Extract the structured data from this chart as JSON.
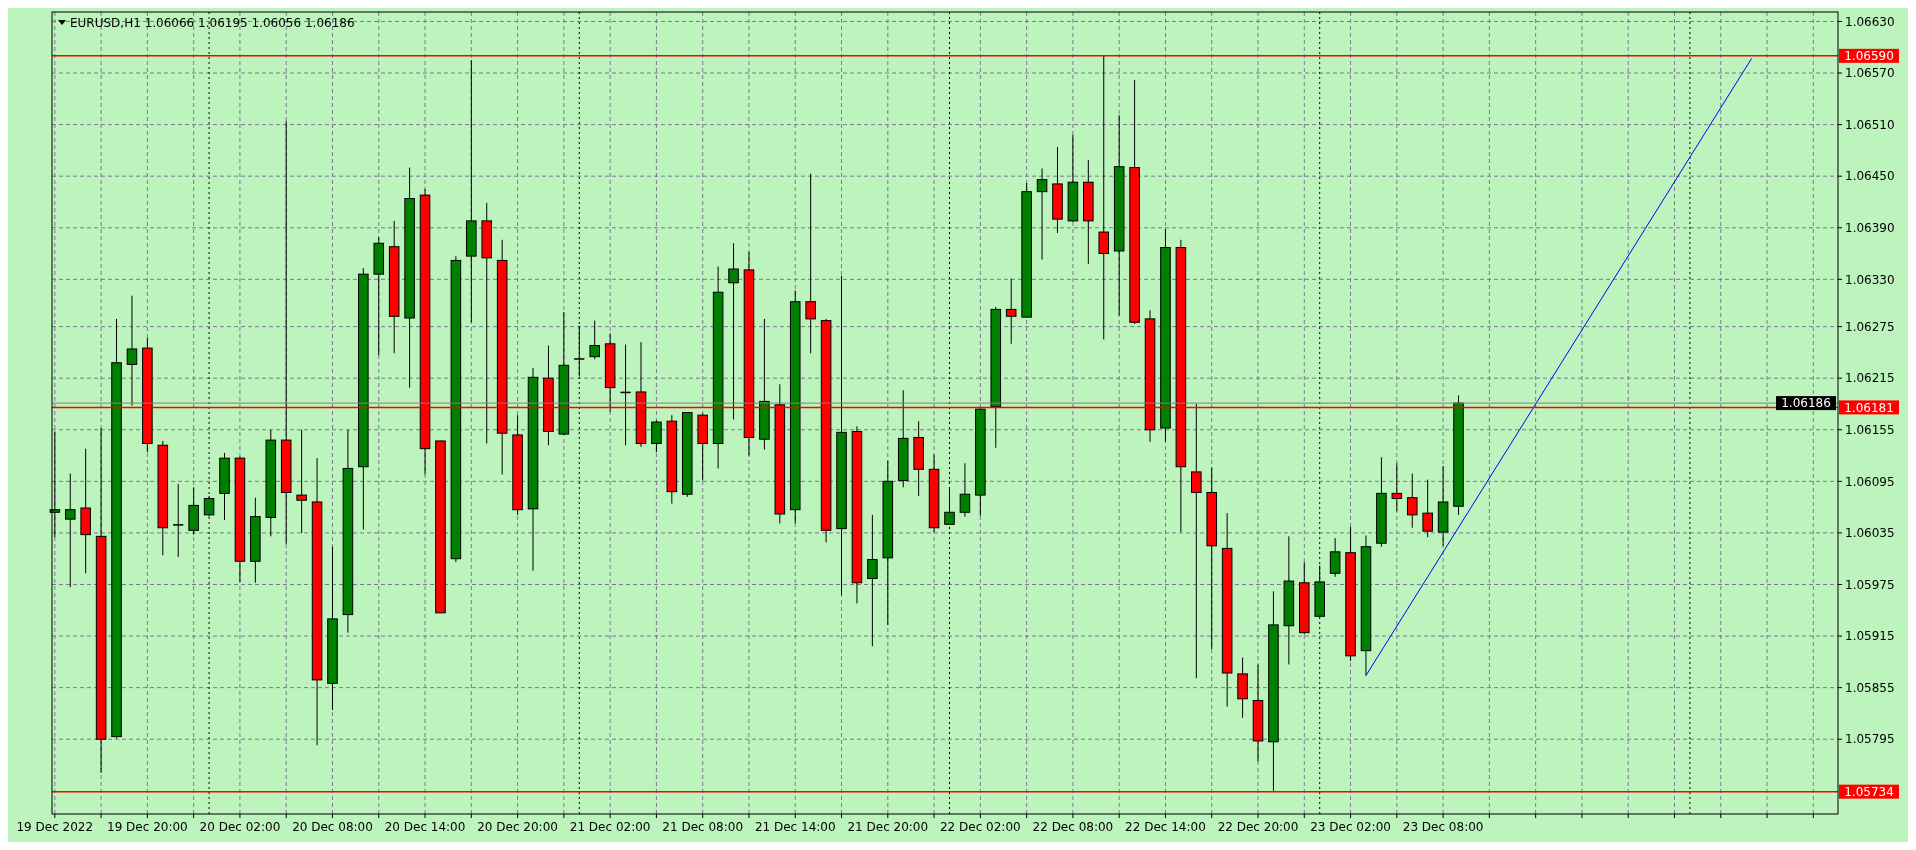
{
  "chart_data": {
    "type": "candlestick",
    "title": "EURUSD,H1  1.06066 1.06195 1.06056 1.06186",
    "x": [
      "2022-12-19T14:00",
      "2022-12-19T15:00",
      "2022-12-19T16:00",
      "2022-12-19T17:00",
      "2022-12-19T18:00",
      "2022-12-19T19:00",
      "2022-12-19T20:00",
      "2022-12-19T21:00",
      "2022-12-19T22:00",
      "2022-12-19T23:00",
      "2022-12-20T00:00",
      "2022-12-20T01:00",
      "2022-12-20T02:00",
      "2022-12-20T03:00",
      "2022-12-20T04:00",
      "2022-12-20T05:00",
      "2022-12-20T06:00",
      "2022-12-20T07:00",
      "2022-12-20T08:00",
      "2022-12-20T09:00",
      "2022-12-20T10:00",
      "2022-12-20T11:00",
      "2022-12-20T12:00",
      "2022-12-20T13:00",
      "2022-12-20T14:00",
      "2022-12-20T15:00",
      "2022-12-20T16:00",
      "2022-12-20T17:00",
      "2022-12-20T18:00",
      "2022-12-20T19:00",
      "2022-12-20T20:00",
      "2022-12-20T21:00",
      "2022-12-20T22:00",
      "2022-12-20T23:00",
      "2022-12-21T00:00",
      "2022-12-21T01:00",
      "2022-12-21T02:00",
      "2022-12-21T03:00",
      "2022-12-21T04:00",
      "2022-12-21T05:00",
      "2022-12-21T06:00",
      "2022-12-21T07:00",
      "2022-12-21T08:00",
      "2022-12-21T09:00",
      "2022-12-21T10:00",
      "2022-12-21T11:00",
      "2022-12-21T12:00",
      "2022-12-21T13:00",
      "2022-12-21T14:00",
      "2022-12-21T15:00",
      "2022-12-21T16:00",
      "2022-12-21T17:00",
      "2022-12-21T18:00",
      "2022-12-21T19:00",
      "2022-12-21T20:00",
      "2022-12-21T21:00",
      "2022-12-21T22:00",
      "2022-12-21T23:00",
      "2022-12-22T00:00",
      "2022-12-22T01:00",
      "2022-12-22T02:00",
      "2022-12-22T03:00",
      "2022-12-22T04:00",
      "2022-12-22T05:00",
      "2022-12-22T06:00",
      "2022-12-22T07:00",
      "2022-12-22T08:00",
      "2022-12-22T09:00",
      "2022-12-22T10:00",
      "2022-12-22T11:00",
      "2022-12-22T12:00",
      "2022-12-22T13:00",
      "2022-12-22T14:00",
      "2022-12-22T15:00",
      "2022-12-22T16:00",
      "2022-12-22T17:00",
      "2022-12-22T18:00",
      "2022-12-22T19:00",
      "2022-12-22T20:00",
      "2022-12-22T21:00",
      "2022-12-22T22:00",
      "2022-12-22T23:00",
      "2022-12-23T00:00",
      "2022-12-23T01:00",
      "2022-12-23T02:00",
      "2022-12-23T03:00",
      "2022-12-23T04:00",
      "2022-12-23T05:00",
      "2022-12-23T06:00",
      "2022-12-23T07:00",
      "2022-12-23T08:00",
      "2022-12-23T09:00"
    ],
    "ohlc": [
      [
        1.06059,
        1.06153,
        1.0603,
        1.06062
      ],
      [
        1.06051,
        1.06104,
        1.05972,
        1.06062
      ],
      [
        1.06064,
        1.06133,
        1.05988,
        1.06033
      ],
      [
        1.06031,
        1.06157,
        1.05756,
        1.05795
      ],
      [
        1.05798,
        1.06284,
        1.05796,
        1.06233
      ],
      [
        1.06231,
        1.06311,
        1.06183,
        1.06249
      ],
      [
        1.0625,
        1.06262,
        1.06129,
        1.06139
      ],
      [
        1.06137,
        1.06142,
        1.06009,
        1.06041
      ],
      [
        1.06045,
        1.06092,
        1.06007,
        1.06045
      ],
      [
        1.06038,
        1.06088,
        1.06033,
        1.06067
      ],
      [
        1.06056,
        1.06078,
        1.06054,
        1.06075
      ],
      [
        1.06081,
        1.06128,
        1.0605,
        1.06122
      ],
      [
        1.06122,
        1.06124,
        1.05978,
        1.06002
      ],
      [
        1.06002,
        1.06076,
        1.05977,
        1.06054
      ],
      [
        1.06053,
        1.06155,
        1.06031,
        1.06143
      ],
      [
        1.06143,
        1.06514,
        1.06022,
        1.06082
      ],
      [
        1.06079,
        1.06155,
        1.06035,
        1.06073
      ],
      [
        1.06071,
        1.06122,
        1.05788,
        1.05864
      ],
      [
        1.0586,
        1.06019,
        1.05829,
        1.05935
      ],
      [
        1.0594,
        1.06155,
        1.05919,
        1.0611
      ],
      [
        1.06112,
        1.06343,
        1.06039,
        1.06336
      ],
      [
        1.06336,
        1.06379,
        1.06242,
        1.06372
      ],
      [
        1.06368,
        1.06398,
        1.06244,
        1.06287
      ],
      [
        1.06285,
        1.0646,
        1.06204,
        1.06424
      ],
      [
        1.06428,
        1.06435,
        1.06103,
        1.06133
      ],
      [
        1.06142,
        1.06142,
        1.05942,
        1.05942
      ],
      [
        1.06005,
        1.06357,
        1.06001,
        1.06352
      ],
      [
        1.06357,
        1.06585,
        1.0628,
        1.06398
      ],
      [
        1.06398,
        1.06419,
        1.06139,
        1.06355
      ],
      [
        1.06352,
        1.06376,
        1.06103,
        1.06151
      ],
      [
        1.06149,
        1.06172,
        1.06056,
        1.06062
      ],
      [
        1.06063,
        1.06227,
        1.05991,
        1.06216
      ],
      [
        1.06215,
        1.06253,
        1.06137,
        1.06153
      ],
      [
        1.0615,
        1.06292,
        1.06149,
        1.0623
      ],
      [
        1.06238,
        1.06276,
        1.06217,
        1.06238
      ],
      [
        1.0624,
        1.06282,
        1.06237,
        1.06253
      ],
      [
        1.06255,
        1.06267,
        1.06176,
        1.06204
      ],
      [
        1.06199,
        1.06254,
        1.06137,
        1.06199
      ],
      [
        1.06199,
        1.06257,
        1.06135,
        1.06139
      ],
      [
        1.06139,
        1.06166,
        1.06129,
        1.06164
      ],
      [
        1.06165,
        1.06172,
        1.06069,
        1.06083
      ],
      [
        1.0608,
        1.06175,
        1.06077,
        1.06175
      ],
      [
        1.06172,
        1.06174,
        1.06096,
        1.06139
      ],
      [
        1.06139,
        1.06345,
        1.0611,
        1.06315
      ],
      [
        1.06326,
        1.06372,
        1.06167,
        1.06342
      ],
      [
        1.06341,
        1.06362,
        1.06125,
        1.06146
      ],
      [
        1.06144,
        1.06284,
        1.06132,
        1.06188
      ],
      [
        1.06184,
        1.06208,
        1.06046,
        1.06057
      ],
      [
        1.06062,
        1.06317,
        1.06046,
        1.06304
      ],
      [
        1.06304,
        1.06453,
        1.06244,
        1.06284
      ],
      [
        1.06282,
        1.06284,
        1.06024,
        1.06038
      ],
      [
        1.0604,
        1.06334,
        1.05963,
        1.06152
      ],
      [
        1.06153,
        1.06159,
        1.05953,
        1.05977
      ],
      [
        1.05982,
        1.06056,
        1.05903,
        1.06004
      ],
      [
        1.06006,
        1.06119,
        1.05928,
        1.06095
      ],
      [
        1.06096,
        1.06201,
        1.06088,
        1.06145
      ],
      [
        1.06146,
        1.06165,
        1.06078,
        1.06109
      ],
      [
        1.06109,
        1.06126,
        1.06036,
        1.06041
      ],
      [
        1.06045,
        1.06086,
        1.06045,
        1.06059
      ],
      [
        1.06059,
        1.06116,
        1.06054,
        1.0608
      ],
      [
        1.06079,
        1.0618,
        1.06055,
        1.06179
      ],
      [
        1.06182,
        1.06298,
        1.06134,
        1.06295
      ],
      [
        1.06295,
        1.06331,
        1.06255,
        1.06287
      ],
      [
        1.06286,
        1.06442,
        1.06286,
        1.06432
      ],
      [
        1.06432,
        1.06459,
        1.06353,
        1.06446
      ],
      [
        1.06441,
        1.06484,
        1.06384,
        1.064
      ],
      [
        1.06398,
        1.06498,
        1.06397,
        1.06443
      ],
      [
        1.06443,
        1.06469,
        1.06348,
        1.06398
      ],
      [
        1.06385,
        1.0659,
        1.0626,
        1.0636
      ],
      [
        1.06363,
        1.06521,
        1.06288,
        1.06461
      ],
      [
        1.0646,
        1.06562,
        1.06278,
        1.0628
      ],
      [
        1.06284,
        1.06294,
        1.06141,
        1.06155
      ],
      [
        1.06157,
        1.06389,
        1.06141,
        1.06367
      ],
      [
        1.06367,
        1.06376,
        1.06036,
        1.06112
      ],
      [
        1.06106,
        1.06185,
        1.05866,
        1.06082
      ],
      [
        1.06082,
        1.06111,
        1.059,
        1.0602
      ],
      [
        1.06017,
        1.06058,
        1.05833,
        1.05872
      ],
      [
        1.05871,
        1.0589,
        1.0582,
        1.05842
      ],
      [
        1.0584,
        1.05882,
        1.05769,
        1.05793
      ],
      [
        1.05792,
        1.05967,
        1.05735,
        1.05928
      ],
      [
        1.05927,
        1.06031,
        1.05882,
        1.05979
      ],
      [
        1.05977,
        1.06001,
        1.05917,
        1.05919
      ],
      [
        1.05938,
        1.05997,
        1.05938,
        1.05978
      ],
      [
        1.05988,
        1.06029,
        1.05984,
        1.06013
      ],
      [
        1.06012,
        1.06042,
        1.05886,
        1.05892
      ],
      [
        1.05898,
        1.06032,
        1.05869,
        1.06019
      ],
      [
        1.06023,
        1.06123,
        1.06019,
        1.06081
      ],
      [
        1.06081,
        1.06116,
        1.0606,
        1.06075
      ],
      [
        1.06076,
        1.06104,
        1.06041,
        1.06056
      ],
      [
        1.06058,
        1.06097,
        1.0603,
        1.06037
      ],
      [
        1.06036,
        1.06113,
        1.0602,
        1.06071
      ],
      [
        1.06066,
        1.06195,
        1.06056,
        1.06186
      ]
    ],
    "series": [
      {
        "type": "line",
        "x": [
          "2022-12-23T03:00",
          "2022-12-24T04:00"
        ],
        "values": [
          1.05869,
          1.06587
        ],
        "color": "#0000ff"
      }
    ],
    "xlim": [
      "2022-12-19T13:49",
      "2022-12-24T09:36"
    ],
    "ylim": [
      1.05708,
      1.06641
    ],
    "yticks": [
      {
        "value": 1.0663,
        "label": "1.06630"
      },
      {
        "value": 1.0657,
        "label": "1.06570"
      },
      {
        "value": 1.0651,
        "label": "1.06510"
      },
      {
        "value": 1.0645,
        "label": "1.06450"
      },
      {
        "value": 1.0639,
        "label": "1.06390"
      },
      {
        "value": 1.0633,
        "label": "1.06330"
      },
      {
        "value": 1.06275,
        "label": "1.06275"
      },
      {
        "value": 1.06215,
        "label": "1.06215"
      },
      {
        "value": 1.06155,
        "label": "1.06155"
      },
      {
        "value": 1.06095,
        "label": "1.06095"
      },
      {
        "value": 1.06035,
        "label": "1.06035"
      },
      {
        "value": 1.05975,
        "label": "1.05975"
      },
      {
        "value": 1.05915,
        "label": "1.05915"
      },
      {
        "value": 1.05855,
        "label": "1.05855"
      },
      {
        "value": 1.05795,
        "label": "1.05795"
      }
    ],
    "xticks": [
      {
        "value": "2022-12-19T14:00",
        "label": "19 Dec 2022"
      },
      {
        "value": "2022-12-19T17:00",
        "label": null
      },
      {
        "value": "2022-12-19T20:00",
        "label": "19 Dec 20:00"
      },
      {
        "value": "2022-12-19T23:00",
        "label": null
      },
      {
        "value": "2022-12-20T02:00",
        "label": "20 Dec 02:00"
      },
      {
        "value": "2022-12-20T05:00",
        "label": null
      },
      {
        "value": "2022-12-20T08:00",
        "label": "20 Dec 08:00"
      },
      {
        "value": "2022-12-20T11:00",
        "label": null
      },
      {
        "value": "2022-12-20T14:00",
        "label": "20 Dec 14:00"
      },
      {
        "value": "2022-12-20T17:00",
        "label": null
      },
      {
        "value": "2022-12-20T20:00",
        "label": "20 Dec 20:00"
      },
      {
        "value": "2022-12-20T23:00",
        "label": null
      },
      {
        "value": "2022-12-21T02:00",
        "label": "21 Dec 02:00"
      },
      {
        "value": "2022-12-21T05:00",
        "label": null
      },
      {
        "value": "2022-12-21T08:00",
        "label": "21 Dec 08:00"
      },
      {
        "value": "2022-12-21T11:00",
        "label": null
      },
      {
        "value": "2022-12-21T14:00",
        "label": "21 Dec 14:00"
      },
      {
        "value": "2022-12-21T17:00",
        "label": null
      },
      {
        "value": "2022-12-21T20:00",
        "label": "21 Dec 20:00"
      },
      {
        "value": "2022-12-21T23:00",
        "label": null
      },
      {
        "value": "2022-12-22T02:00",
        "label": "22 Dec 02:00"
      },
      {
        "value": "2022-12-22T05:00",
        "label": null
      },
      {
        "value": "2022-12-22T08:00",
        "label": "22 Dec 08:00"
      },
      {
        "value": "2022-12-22T11:00",
        "label": null
      },
      {
        "value": "2022-12-22T14:00",
        "label": "22 Dec 14:00"
      },
      {
        "value": "2022-12-22T17:00",
        "label": null
      },
      {
        "value": "2022-12-22T20:00",
        "label": "22 Dec 20:00"
      },
      {
        "value": "2022-12-22T23:00",
        "label": null
      },
      {
        "value": "2022-12-23T02:00",
        "label": "23 Dec 02:00"
      },
      {
        "value": "2022-12-23T05:00",
        "label": null
      },
      {
        "value": "2022-12-23T08:00",
        "label": "23 Dec 08:00"
      },
      {
        "value": "2022-12-23T11:00",
        "label": null
      },
      {
        "value": "2022-12-23T14:00",
        "label": null
      },
      {
        "value": "2022-12-23T17:00",
        "label": null
      },
      {
        "value": "2022-12-23T20:00",
        "label": null
      },
      {
        "value": "2022-12-23T23:00",
        "label": null
      },
      {
        "value": "2022-12-24T02:00",
        "label": null
      },
      {
        "value": "2022-12-24T05:00",
        "label": null
      },
      {
        "value": "2022-12-24T08:00",
        "label": null
      }
    ],
    "ref_lines": [
      {
        "axis": "y",
        "value": 1.06186,
        "label": "1.06186",
        "color": "#808080"
      },
      {
        "axis": "y",
        "value": 1.0659,
        "label": "1.06590",
        "color": "#ff0000"
      },
      {
        "axis": "y",
        "value": 1.06181,
        "label": "1.06181",
        "color": "#ff0000"
      },
      {
        "axis": "y",
        "value": 1.05734,
        "label": "1.05734",
        "color": "#ff0000"
      },
      {
        "axis": "x",
        "value": "2022-12-20T00:00",
        "color": "#000000",
        "line_style": "dotted"
      },
      {
        "axis": "x",
        "value": "2022-12-21T00:00",
        "color": "#000000",
        "line_style": "dotted"
      },
      {
        "axis": "x",
        "value": "2022-12-22T00:00",
        "color": "#000000",
        "line_style": "dotted"
      },
      {
        "axis": "x",
        "value": "2022-12-23T00:00",
        "color": "#000000",
        "line_style": "dotted"
      },
      {
        "axis": "x",
        "value": "2022-12-24T00:00",
        "color": "#000000",
        "line_style": "dotted"
      }
    ],
    "grid": true
  }
}
